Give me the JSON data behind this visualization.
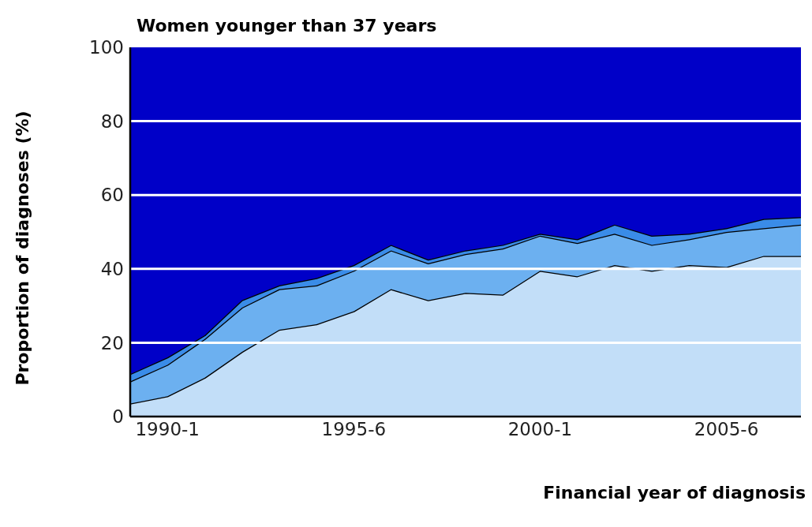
{
  "chart_data": {
    "type": "area",
    "stacked": true,
    "title": "Women younger than 37 years",
    "xlabel": "Financial year of diagnosis",
    "ylabel": "Proportion of diagnoses (%)",
    "categories": [
      null,
      "1990-1",
      null,
      null,
      null,
      null,
      "1995-6",
      null,
      null,
      null,
      null,
      "2000-1",
      null,
      null,
      null,
      null,
      "2005-6",
      null,
      null
    ],
    "series": [
      {
        "color": "#c2def8",
        "values": [
          3.5,
          5.5,
          10.5,
          17.5,
          23.5,
          25,
          28.5,
          34.5,
          31.5,
          33.5,
          33,
          39.5,
          38,
          41,
          39.5,
          41,
          40.5,
          43.5,
          43.5
        ]
      },
      {
        "color": "#6cb0f0",
        "values": [
          6,
          8.5,
          10.5,
          12,
          11,
          10.5,
          11,
          10.5,
          10,
          10.5,
          12.5,
          9.5,
          9,
          8.5,
          7,
          7,
          9.5,
          7.5,
          8.5
        ]
      },
      {
        "color": "#3a8ce8",
        "values": [
          2,
          2,
          1,
          2,
          1,
          2,
          1.5,
          1.5,
          1,
          1,
          1,
          0.5,
          1,
          2.5,
          2.5,
          1.5,
          1,
          2.5,
          2
        ]
      },
      {
        "color": "#0000c8",
        "values": [
          88.5,
          84,
          78,
          68.5,
          64.5,
          62.5,
          59,
          53.5,
          57.5,
          55,
          53.5,
          50.5,
          52,
          48,
          51,
          50.5,
          49,
          46.5,
          46
        ]
      }
    ],
    "ylim": [
      0,
      100
    ],
    "yticks": [
      0,
      20,
      40,
      60,
      80,
      100
    ],
    "grid": "y"
  }
}
